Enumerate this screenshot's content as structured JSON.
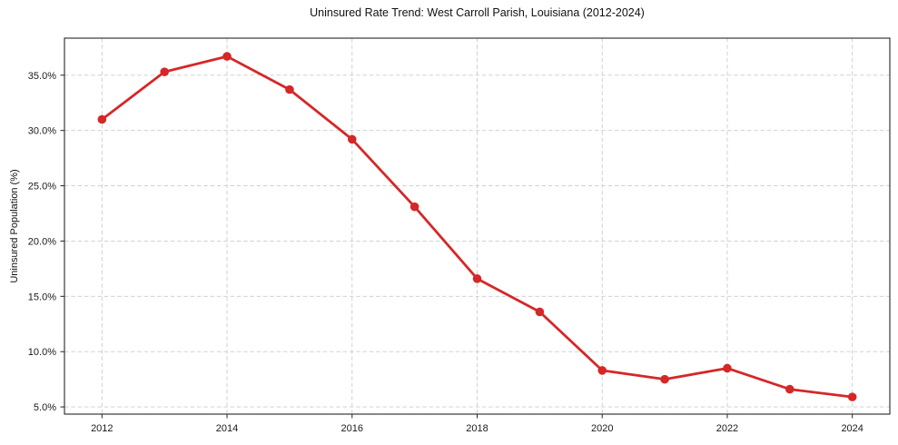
{
  "chart_data": {
    "type": "line",
    "title": "Uninsured Rate Trend: West Carroll Parish, Louisiana (2012-2024)",
    "xlabel": "",
    "ylabel": "Uninsured Population (%)",
    "x": [
      2012,
      2013,
      2014,
      2015,
      2016,
      2017,
      2018,
      2019,
      2020,
      2021,
      2022,
      2023,
      2024
    ],
    "values": [
      31.0,
      35.3,
      36.7,
      33.7,
      29.2,
      23.1,
      16.6,
      13.6,
      8.3,
      7.5,
      8.5,
      6.6,
      5.9
    ],
    "xlim": [
      2011.4,
      2024.6
    ],
    "ylim": [
      4.35,
      38.35
    ],
    "x_ticks": [
      2012,
      2014,
      2016,
      2018,
      2020,
      2022,
      2024
    ],
    "x_tick_labels": [
      "2012",
      "2014",
      "2016",
      "2018",
      "2020",
      "2022",
      "2024"
    ],
    "y_ticks": [
      5,
      10,
      15,
      20,
      25,
      30,
      35
    ],
    "y_tick_labels": [
      "5.0%",
      "10.0%",
      "15.0%",
      "20.0%",
      "25.0%",
      "30.0%",
      "35.0%"
    ],
    "grid": true,
    "grid_style": "dashed",
    "legend": "none",
    "marker": "circle",
    "colors": {
      "line": "#d62728",
      "marker": "#d62728",
      "grid": "#cccccc",
      "spine": "#262626",
      "tick": "#262626",
      "text": "#1a1a1a",
      "background": "#ffffff"
    }
  }
}
